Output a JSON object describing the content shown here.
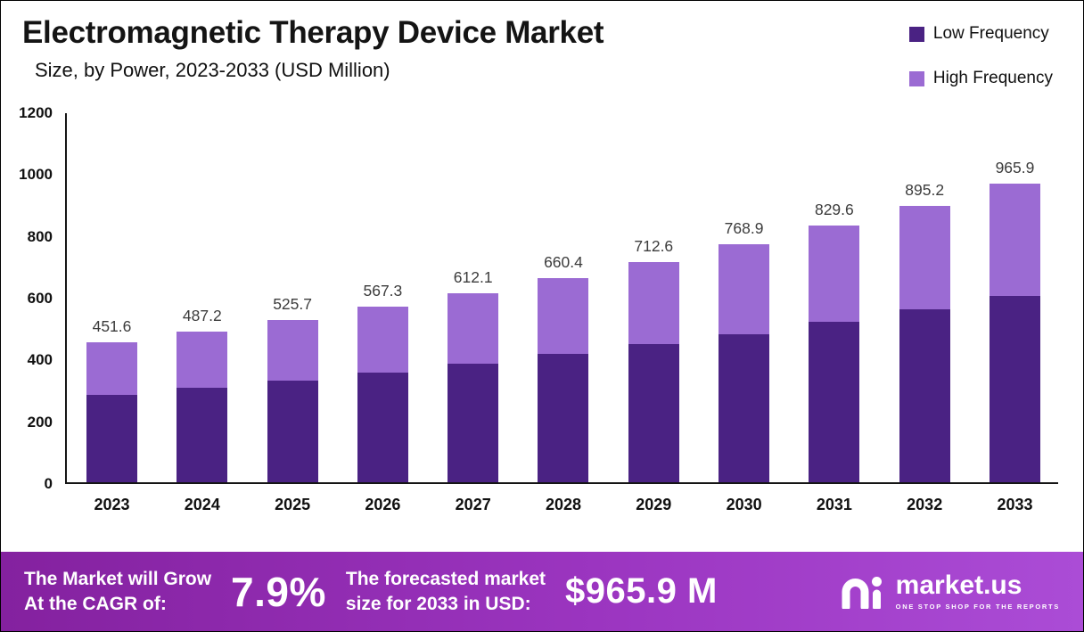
{
  "header": {
    "title": "Electromagnetic Therapy Device Market",
    "subtitle": "Size, by Power, 2023-2033 (USD Million)"
  },
  "legend": [
    {
      "label": "Low Frequency",
      "color": "#4a2283"
    },
    {
      "label": "High Frequency",
      "color": "#9b6bd3"
    }
  ],
  "chart_data": {
    "type": "bar",
    "stacked": true,
    "title": "Electromagnetic Therapy Device Market Size, by Power, 2023-2033 (USD Million)",
    "categories": [
      "2023",
      "2024",
      "2025",
      "2026",
      "2027",
      "2028",
      "2029",
      "2030",
      "2031",
      "2032",
      "2033"
    ],
    "series": [
      {
        "name": "Low Frequency",
        "color": "#4a2283",
        "values": [
          283,
          305,
          329,
          355,
          384,
          414,
          446,
          480,
          519,
          560,
          602
        ]
      },
      {
        "name": "High Frequency",
        "color": "#9b6bd3",
        "values": [
          168.6,
          182.2,
          196.7,
          212.3,
          228.1,
          246.4,
          266.6,
          288.9,
          310.6,
          335.2,
          363.9
        ]
      }
    ],
    "totals": [
      451.6,
      487.2,
      525.7,
      567.3,
      612.1,
      660.4,
      712.6,
      768.9,
      829.6,
      895.2,
      965.9
    ],
    "ylim": [
      0,
      1200
    ],
    "yticks": [
      0,
      200,
      400,
      600,
      800,
      1000,
      1200
    ],
    "xlabel": "",
    "ylabel": "",
    "grid": false,
    "legend_position": "top-right"
  },
  "footer": {
    "cagr_label_line1": "The Market will Grow",
    "cagr_label_line2": "At the CAGR of:",
    "cagr_value": "7.9%",
    "forecast_label_line1": "The forecasted market",
    "forecast_label_line2": "size for 2033 in USD:",
    "forecast_value": "$965.9 M",
    "brand_name": "market.us",
    "brand_tagline": "ONE STOP SHOP FOR THE REPORTS"
  },
  "colors": {
    "banner_left": "#84219f",
    "banner_mid": "#9b35c0",
    "banner_right": "#ab4cd6",
    "axis": "#151515",
    "value_label": "#3c3c3c"
  }
}
